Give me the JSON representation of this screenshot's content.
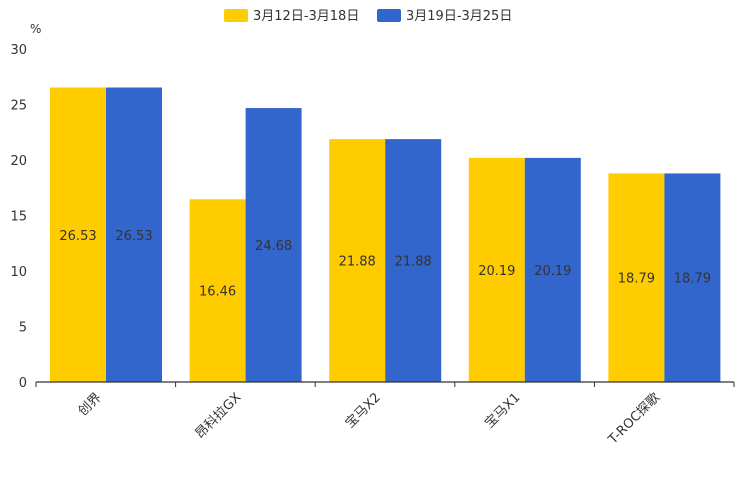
{
  "chart_data": {
    "type": "bar",
    "unit": "%",
    "categories": [
      "创界",
      "昂科拉GX",
      "宝马X2",
      "宝马X1",
      "T-ROC探歌"
    ],
    "series": [
      {
        "name": "3月12日-3月18日",
        "color": "#FFCC00",
        "values": [
          26.53,
          16.46,
          21.88,
          20.19,
          18.79
        ]
      },
      {
        "name": "3月19日-3月25日",
        "color": "#3366CC",
        "values": [
          26.53,
          24.68,
          21.88,
          20.19,
          18.79
        ]
      }
    ],
    "ylim": [
      0,
      30
    ],
    "yticks": [
      0,
      5,
      10,
      15,
      20,
      25,
      30
    ],
    "legend_position": "top-center",
    "grid": false,
    "xlabel": "",
    "ylabel": ""
  }
}
